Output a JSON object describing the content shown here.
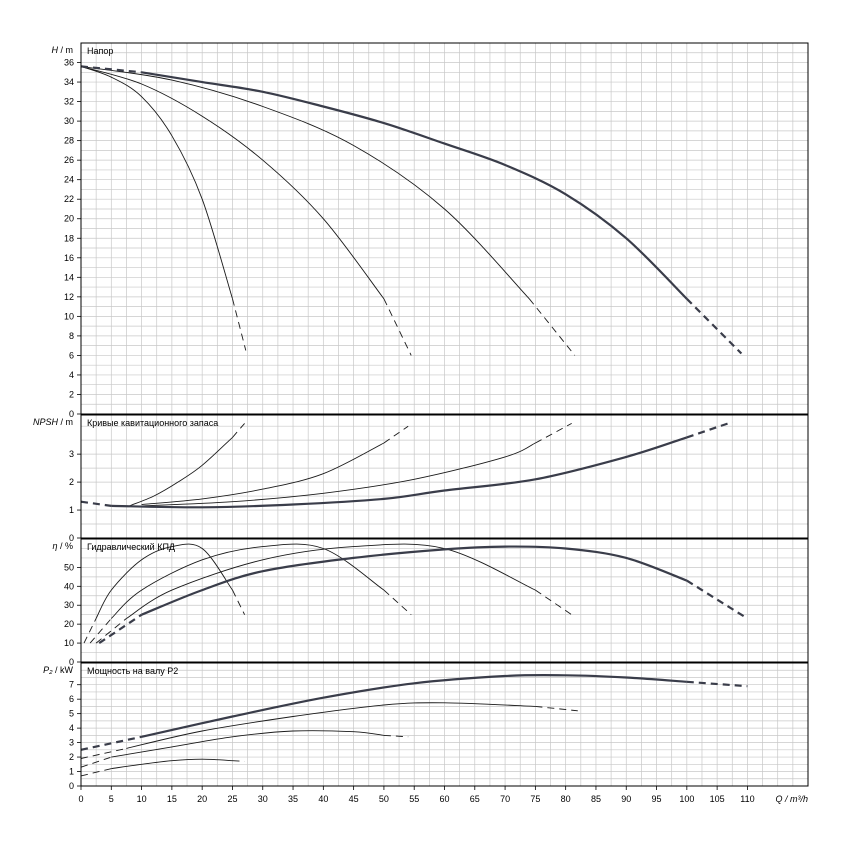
{
  "chart_data": {
    "type": "line",
    "x_axis": {
      "label": "Q / m³/h",
      "range": [
        0,
        120
      ],
      "ticks": [
        0,
        5,
        10,
        15,
        20,
        25,
        30,
        35,
        40,
        45,
        50,
        55,
        60,
        65,
        70,
        75,
        80,
        85,
        90,
        95,
        100,
        105,
        110
      ],
      "minor_step": 2.5
    },
    "grid": true,
    "panels": [
      {
        "id": "head",
        "title": "Напор",
        "y_label_symbol": "H",
        "y_label_unit": "m",
        "ylim": [
          0,
          38
        ],
        "y_ticks": [
          0,
          2,
          4,
          6,
          8,
          10,
          12,
          14,
          16,
          18,
          20,
          22,
          24,
          26,
          28,
          30,
          32,
          34,
          36
        ],
        "series": [
          {
            "weight": "thin",
            "points": [
              [
                0,
                35.6
              ],
              [
                5,
                34.5
              ],
              [
                10,
                32.5
              ],
              [
                15,
                28.5
              ],
              [
                20,
                22
              ],
              [
                25,
                11.8
              ]
            ],
            "dashed": [
              [
                25,
                11.8
              ],
              [
                27.2,
                6.5
              ]
            ]
          },
          {
            "weight": "thin",
            "points": [
              [
                0,
                35.6
              ],
              [
                10,
                33.8
              ],
              [
                20,
                30.5
              ],
              [
                30,
                26
              ],
              [
                40,
                20
              ],
              [
                50,
                11.8
              ]
            ],
            "dashed": [
              [
                50,
                11.8
              ],
              [
                54.5,
                6
              ]
            ]
          },
          {
            "weight": "thin",
            "points": [
              [
                0,
                35.6
              ],
              [
                15,
                34.2
              ],
              [
                30,
                31.5
              ],
              [
                45,
                27.5
              ],
              [
                60,
                21
              ],
              [
                74,
                11.8
              ]
            ],
            "dashed": [
              [
                74,
                11.8
              ],
              [
                81.5,
                6
              ]
            ]
          },
          {
            "weight": "bold",
            "points": [
              [
                10,
                35
              ],
              [
                20,
                34
              ],
              [
                30,
                33
              ],
              [
                40,
                31.5
              ],
              [
                50,
                29.8
              ],
              [
                60,
                27.7
              ],
              [
                70,
                25.5
              ],
              [
                80,
                22.5
              ],
              [
                90,
                18
              ],
              [
                100,
                11.8
              ]
            ],
            "dashed": [
              [
                0,
                35.6
              ],
              [
                10,
                35
              ],
              [
                100,
                11.8
              ],
              [
                109,
                6.2
              ]
            ]
          }
        ]
      },
      {
        "id": "npsh",
        "title": "Кривые кавитационного запаса",
        "y_label_symbol": "NPSH",
        "y_label_unit": "m",
        "ylim": [
          0,
          4.4
        ],
        "y_ticks": [
          0,
          1,
          2,
          3
        ],
        "series": [
          {
            "weight": "thin",
            "points": [
              [
                8,
                1.15
              ],
              [
                12,
                1.5
              ],
              [
                16,
                2
              ],
              [
                20,
                2.6
              ],
              [
                25,
                3.6
              ]
            ],
            "dashed": [
              [
                25,
                3.6
              ],
              [
                27,
                4.1
              ]
            ]
          },
          {
            "weight": "thin",
            "points": [
              [
                10,
                1.2
              ],
              [
                20,
                1.4
              ],
              [
                30,
                1.75
              ],
              [
                40,
                2.3
              ],
              [
                50,
                3.4
              ]
            ],
            "dashed": [
              [
                50,
                3.4
              ],
              [
                54,
                4
              ]
            ]
          },
          {
            "weight": "thin",
            "points": [
              [
                10,
                1.15
              ],
              [
                25,
                1.3
              ],
              [
                40,
                1.6
              ],
              [
                55,
                2.1
              ],
              [
                70,
                2.9
              ],
              [
                75,
                3.4
              ]
            ],
            "dashed": [
              [
                75,
                3.4
              ],
              [
                81,
                4.1
              ]
            ]
          },
          {
            "weight": "bold",
            "points": [
              [
                5,
                1.15
              ],
              [
                20,
                1.1
              ],
              [
                35,
                1.2
              ],
              [
                50,
                1.4
              ],
              [
                60,
                1.7
              ],
              [
                75,
                2.1
              ],
              [
                90,
                2.9
              ],
              [
                100,
                3.6
              ]
            ],
            "dashed": [
              [
                0,
                1.3
              ],
              [
                5,
                1.15
              ],
              [
                100,
                3.6
              ],
              [
                107.5,
                4.15
              ]
            ]
          }
        ]
      },
      {
        "id": "efficiency",
        "title": "Гидравлический КПД",
        "y_label_symbol": "η",
        "y_label_unit": "%",
        "ylim": [
          0,
          65
        ],
        "y_ticks": [
          0,
          10,
          20,
          30,
          40,
          50
        ],
        "series": [
          {
            "weight": "thin",
            "points": [
              [
                2.5,
                23
              ],
              [
                5,
                38
              ],
              [
                10,
                54
              ],
              [
                15,
                61
              ],
              [
                20,
                60
              ],
              [
                25,
                38
              ]
            ],
            "dashed": [
              [
                25,
                38
              ],
              [
                27,
                25
              ],
              [
                0.5,
                10
              ],
              [
                2.5,
                23
              ]
            ]
          },
          {
            "weight": "thin",
            "points": [
              [
                5,
                23
              ],
              [
                10,
                38
              ],
              [
                20,
                54
              ],
              [
                30,
                61
              ],
              [
                40,
                60
              ],
              [
                50,
                38
              ]
            ],
            "dashed": [
              [
                50,
                38
              ],
              [
                54.5,
                25
              ],
              [
                1.5,
                10
              ],
              [
                5,
                23
              ]
            ]
          },
          {
            "weight": "thin",
            "points": [
              [
                7.5,
                23
              ],
              [
                15,
                38
              ],
              [
                30,
                54
              ],
              [
                45,
                61
              ],
              [
                60,
                60
              ],
              [
                75,
                38
              ]
            ],
            "dashed": [
              [
                75,
                38
              ],
              [
                81,
                25
              ],
              [
                2.5,
                10
              ],
              [
                7.5,
                23
              ]
            ]
          },
          {
            "weight": "bold",
            "points": [
              [
                10,
                25
              ],
              [
                20,
                38
              ],
              [
                30,
                48
              ],
              [
                45,
                55
              ],
              [
                60,
                59.5
              ],
              [
                70,
                61
              ],
              [
                80,
                60
              ],
              [
                90,
                55
              ],
              [
                100,
                43
              ]
            ],
            "dashed": [
              [
                100,
                43
              ],
              [
                109.5,
                24
              ],
              [
                3,
                10
              ],
              [
                10,
                25
              ]
            ]
          }
        ]
      },
      {
        "id": "power",
        "title": "Мощность на валу P2",
        "y_label_symbol": "P₂",
        "y_label_unit": "kW",
        "ylim": [
          0,
          8.5
        ],
        "y_ticks": [
          0,
          1,
          2,
          3,
          4,
          5,
          6,
          7
        ],
        "series": [
          {
            "weight": "thin",
            "points": [
              [
                5,
                1.2
              ],
              [
                10,
                1.5
              ],
              [
                15,
                1.75
              ],
              [
                20,
                1.85
              ],
              [
                25,
                1.75
              ]
            ],
            "dashed": [
              [
                0,
                0.7
              ],
              [
                5,
                1.2
              ],
              [
                25,
                1.75
              ],
              [
                27,
                1.7
              ]
            ]
          },
          {
            "weight": "thin",
            "points": [
              [
                5,
                2
              ],
              [
                15,
                2.7
              ],
              [
                25,
                3.4
              ],
              [
                35,
                3.8
              ],
              [
                45,
                3.75
              ],
              [
                50,
                3.5
              ]
            ],
            "dashed": [
              [
                0,
                1.3
              ],
              [
                5,
                2
              ],
              [
                50,
                3.5
              ],
              [
                54,
                3.4
              ]
            ]
          },
          {
            "weight": "thin",
            "points": [
              [
                7.5,
                2.6
              ],
              [
                20,
                3.8
              ],
              [
                35,
                4.8
              ],
              [
                50,
                5.6
              ],
              [
                60,
                5.75
              ],
              [
                75,
                5.5
              ]
            ],
            "dashed": [
              [
                0,
                1.9
              ],
              [
                7.5,
                2.6
              ],
              [
                75,
                5.5
              ],
              [
                82,
                5.2
              ]
            ]
          },
          {
            "weight": "bold",
            "points": [
              [
                10,
                3.4
              ],
              [
                25,
                4.8
              ],
              [
                40,
                6.1
              ],
              [
                55,
                7.1
              ],
              [
                70,
                7.6
              ],
              [
                80,
                7.65
              ],
              [
                90,
                7.5
              ],
              [
                100,
                7.2
              ]
            ],
            "dashed": [
              [
                0,
                2.5
              ],
              [
                10,
                3.4
              ],
              [
                100,
                7.2
              ],
              [
                110,
                6.9
              ]
            ]
          }
        ]
      }
    ]
  }
}
